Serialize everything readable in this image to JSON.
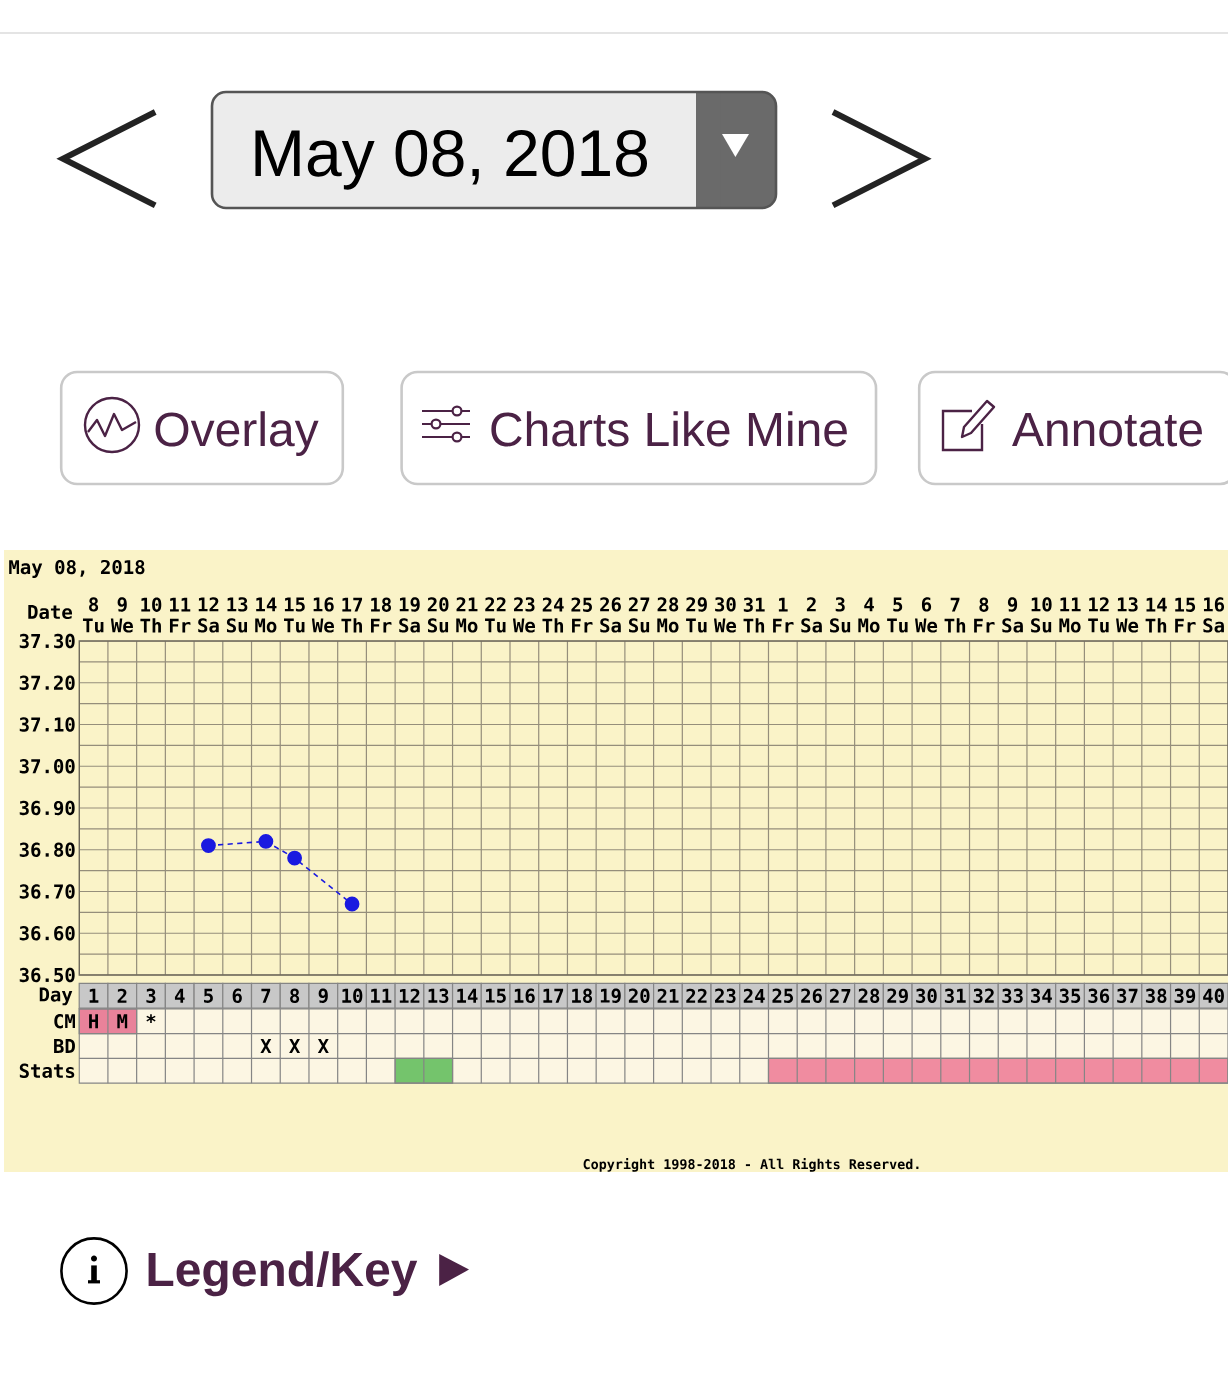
{
  "chart_data": [
    {
      "type": "other",
      "title": "May 08, 2018",
      "annotations": [
        "Overlay",
        "Charts Like Mine",
        "Annotate"
      ]
    },
    {
      "type": "line",
      "title": "May 08, 2018",
      "xlabel": "Date",
      "x": [
        "2018-05-12",
        "2018-05-14",
        "2018-05-15",
        "2018-05-17"
      ],
      "values": [
        36.81,
        36.82,
        36.78,
        36.67
      ],
      "color": "#1a1ae0",
      "marker": "circle",
      "line_style": "dashed",
      "xlim": [
        "2018-05-07T12:00",
        "2018-06-16T12:00"
      ],
      "xticks": [
        {
          "value": "2018-05-08",
          "label": "8 Tu"
        },
        {
          "value": "2018-05-09",
          "label": "9 We"
        },
        {
          "value": "2018-05-10",
          "label": "10 Th"
        },
        {
          "value": "2018-05-11",
          "label": "11 Fr"
        },
        {
          "value": "2018-05-12",
          "label": "12 Sa"
        },
        {
          "value": "2018-05-13",
          "label": "13 Su"
        },
        {
          "value": "2018-05-14",
          "label": "14 Mo"
        },
        {
          "value": "2018-05-15",
          "label": "15 Tu"
        },
        {
          "value": "2018-05-16",
          "label": "16 We"
        },
        {
          "value": "2018-05-17",
          "label": "17 Th"
        },
        {
          "value": "2018-05-18",
          "label": "18 Fr"
        },
        {
          "value": "2018-05-19",
          "label": "19 Sa"
        },
        {
          "value": "2018-05-20",
          "label": "20 Su"
        },
        {
          "value": "2018-05-21",
          "label": "21 Mo"
        },
        {
          "value": "2018-05-22",
          "label": "22 Tu"
        },
        {
          "value": "2018-05-23",
          "label": "23 We"
        },
        {
          "value": "2018-05-24",
          "label": "24 Th"
        },
        {
          "value": "2018-05-25",
          "label": "25 Fr"
        },
        {
          "value": "2018-05-26",
          "label": "26 Sa"
        },
        {
          "value": "2018-05-27",
          "label": "27 Su"
        },
        {
          "value": "2018-05-28",
          "label": "28 Mo"
        },
        {
          "value": "2018-05-29",
          "label": "29 Tu"
        },
        {
          "value": "2018-05-30",
          "label": "30 We"
        },
        {
          "value": "2018-05-31",
          "label": "31 Th"
        },
        {
          "value": "2018-06-01",
          "label": "1 Fr"
        },
        {
          "value": "2018-06-02",
          "label": "2 Sa"
        },
        {
          "value": "2018-06-03",
          "label": "3 Su"
        },
        {
          "value": "2018-06-04",
          "label": "4 Mo"
        },
        {
          "value": "2018-06-05",
          "label": "5 Tu"
        },
        {
          "value": "2018-06-06",
          "label": "6 We"
        },
        {
          "value": "2018-06-07",
          "label": "7 Th"
        },
        {
          "value": "2018-06-08",
          "label": "8 Fr"
        },
        {
          "value": "2018-06-09",
          "label": "9 Sa"
        },
        {
          "value": "2018-06-10",
          "label": "10 Su"
        },
        {
          "value": "2018-06-11",
          "label": "11 Mo"
        },
        {
          "value": "2018-06-12",
          "label": "12 Tu"
        },
        {
          "value": "2018-06-13",
          "label": "13 We"
        },
        {
          "value": "2018-06-14",
          "label": "14 Th"
        },
        {
          "value": "2018-06-15",
          "label": "15 Fr"
        },
        {
          "value": "2018-06-16",
          "label": "16 Sa"
        }
      ],
      "ylim": [
        36.5,
        37.3
      ],
      "yticks": [
        {
          "value": 36.5,
          "label": "36.50"
        },
        {
          "value": 36.6,
          "label": "36.60"
        },
        {
          "value": 36.7,
          "label": "36.70"
        },
        {
          "value": 36.8,
          "label": "36.80"
        },
        {
          "value": 36.9,
          "label": "36.90"
        },
        {
          "value": 37.0,
          "label": "37.00"
        },
        {
          "value": 37.1,
          "label": "37.10"
        },
        {
          "value": 37.2,
          "label": "37.20"
        },
        {
          "value": 37.3,
          "label": "37.30"
        }
      ],
      "grid": true
    },
    {
      "type": "bar",
      "orientation": "horizontal",
      "xlabel": "Day",
      "categories": [
        "CM",
        "BD",
        "Stats"
      ],
      "series": [
        {
          "color": "#e9829a",
          "values": [
            2,
            null,
            null
          ],
          "base": [
            0.5,
            null,
            null
          ]
        },
        {
          "color": "#74c46c",
          "values": [
            null,
            null,
            2
          ],
          "base": [
            null,
            null,
            11.5
          ]
        },
        {
          "color": "#f08ca0",
          "values": [
            null,
            null,
            16
          ],
          "base": [
            null,
            null,
            24.5
          ]
        }
      ],
      "xlim": [
        0.5,
        40.5
      ],
      "xticks": [
        1,
        2,
        3,
        4,
        5,
        6,
        7,
        8,
        9,
        10,
        11,
        12,
        13,
        14,
        15,
        16,
        17,
        18,
        19,
        20,
        21,
        22,
        23,
        24,
        25,
        26,
        27,
        28,
        29,
        30,
        31,
        32,
        33,
        34,
        35,
        36,
        37,
        38,
        39,
        40
      ],
      "grid": true,
      "annotations": [
        {
          "text": "H",
          "x": 1,
          "y": "CM"
        },
        {
          "text": "M",
          "x": 2,
          "y": "CM"
        },
        "*",
        "X",
        "X",
        "X",
        "Copyright 1998-2018 - All Rights Reserved."
      ]
    },
    {
      "type": "other",
      "annotations": [
        "Legend/Key"
      ]
    }
  ]
}
